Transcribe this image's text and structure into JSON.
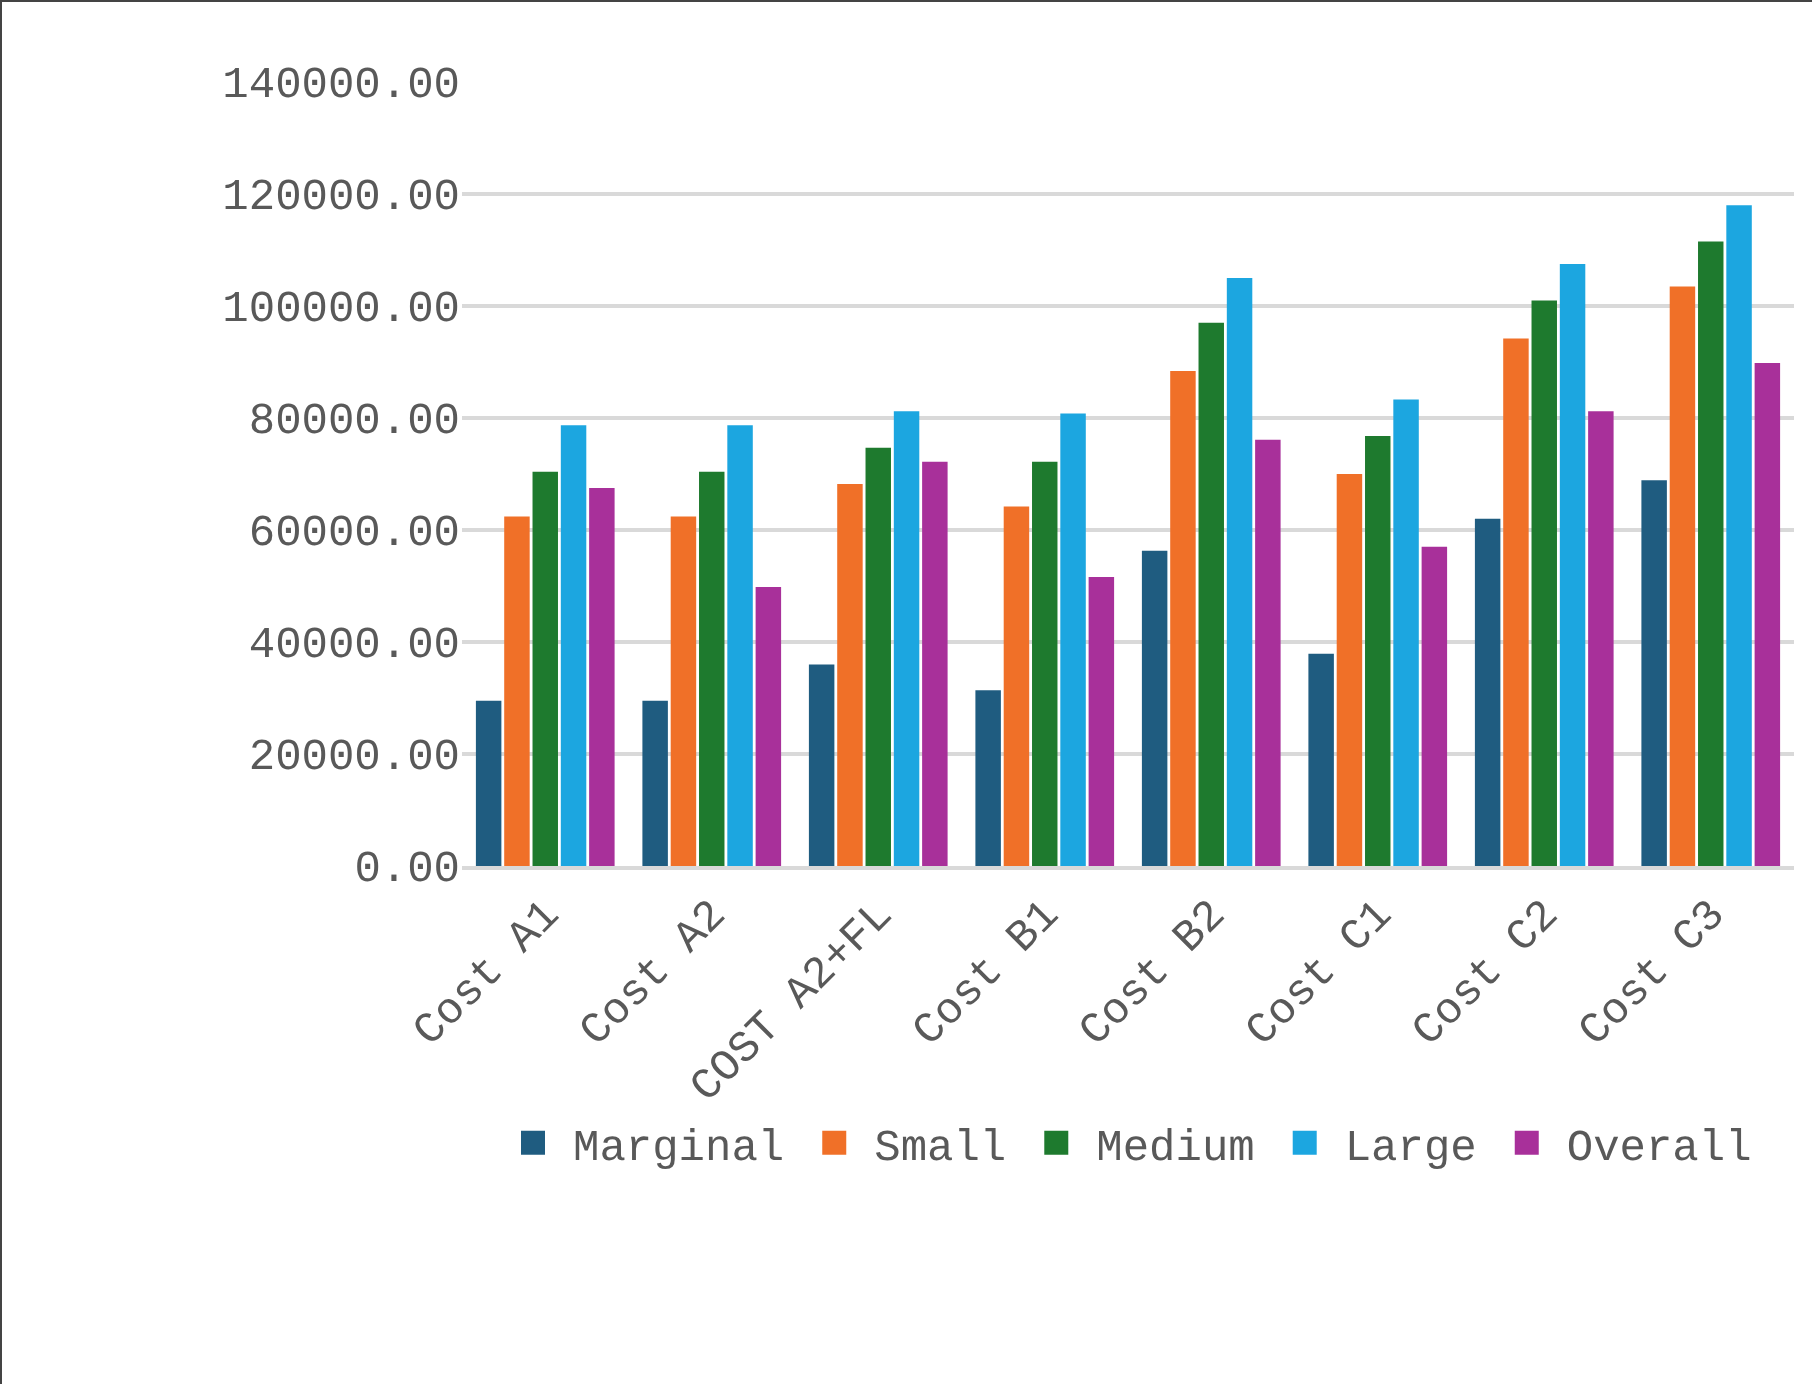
{
  "chart_data": {
    "type": "bar",
    "categories": [
      "Cost A1",
      "Cost A2",
      "COST A2+FL",
      "Cost B1",
      "Cost B2",
      "Cost C1",
      "Cost C2",
      "Cost C3"
    ],
    "series": [
      {
        "name": "Marginal",
        "color": "#1f5c80",
        "values": [
          29500,
          29500,
          36000,
          31400,
          56300,
          37900,
          62000,
          68900
        ]
      },
      {
        "name": "Small",
        "color": "#f07028",
        "values": [
          62400,
          62400,
          68200,
          64200,
          88400,
          70000,
          94200,
          103500
        ]
      },
      {
        "name": "Medium",
        "color": "#1e7a2e",
        "values": [
          70400,
          70400,
          74700,
          72200,
          97000,
          76800,
          101000,
          111500
        ]
      },
      {
        "name": "Large",
        "color": "#1ca6e0",
        "values": [
          78700,
          78700,
          81200,
          80800,
          105000,
          83300,
          107500,
          118000
        ]
      },
      {
        "name": "Overall",
        "color": "#a8309a",
        "values": [
          67500,
          49800,
          72200,
          51600,
          76100,
          57000,
          81200,
          89800
        ]
      }
    ],
    "ylim": [
      0,
      140000
    ],
    "yticks": [
      {
        "value": 0,
        "label": "0.00"
      },
      {
        "value": 20000,
        "label": "20000.00"
      },
      {
        "value": 40000,
        "label": "40000.00"
      },
      {
        "value": 60000,
        "label": "60000.00"
      },
      {
        "value": 80000,
        "label": "80000.00"
      },
      {
        "value": 100000,
        "label": "100000.00"
      },
      {
        "value": 120000,
        "label": "120000.00"
      },
      {
        "value": 140000,
        "label": "140000.00"
      }
    ],
    "grid": "y",
    "legend": "bottom"
  }
}
